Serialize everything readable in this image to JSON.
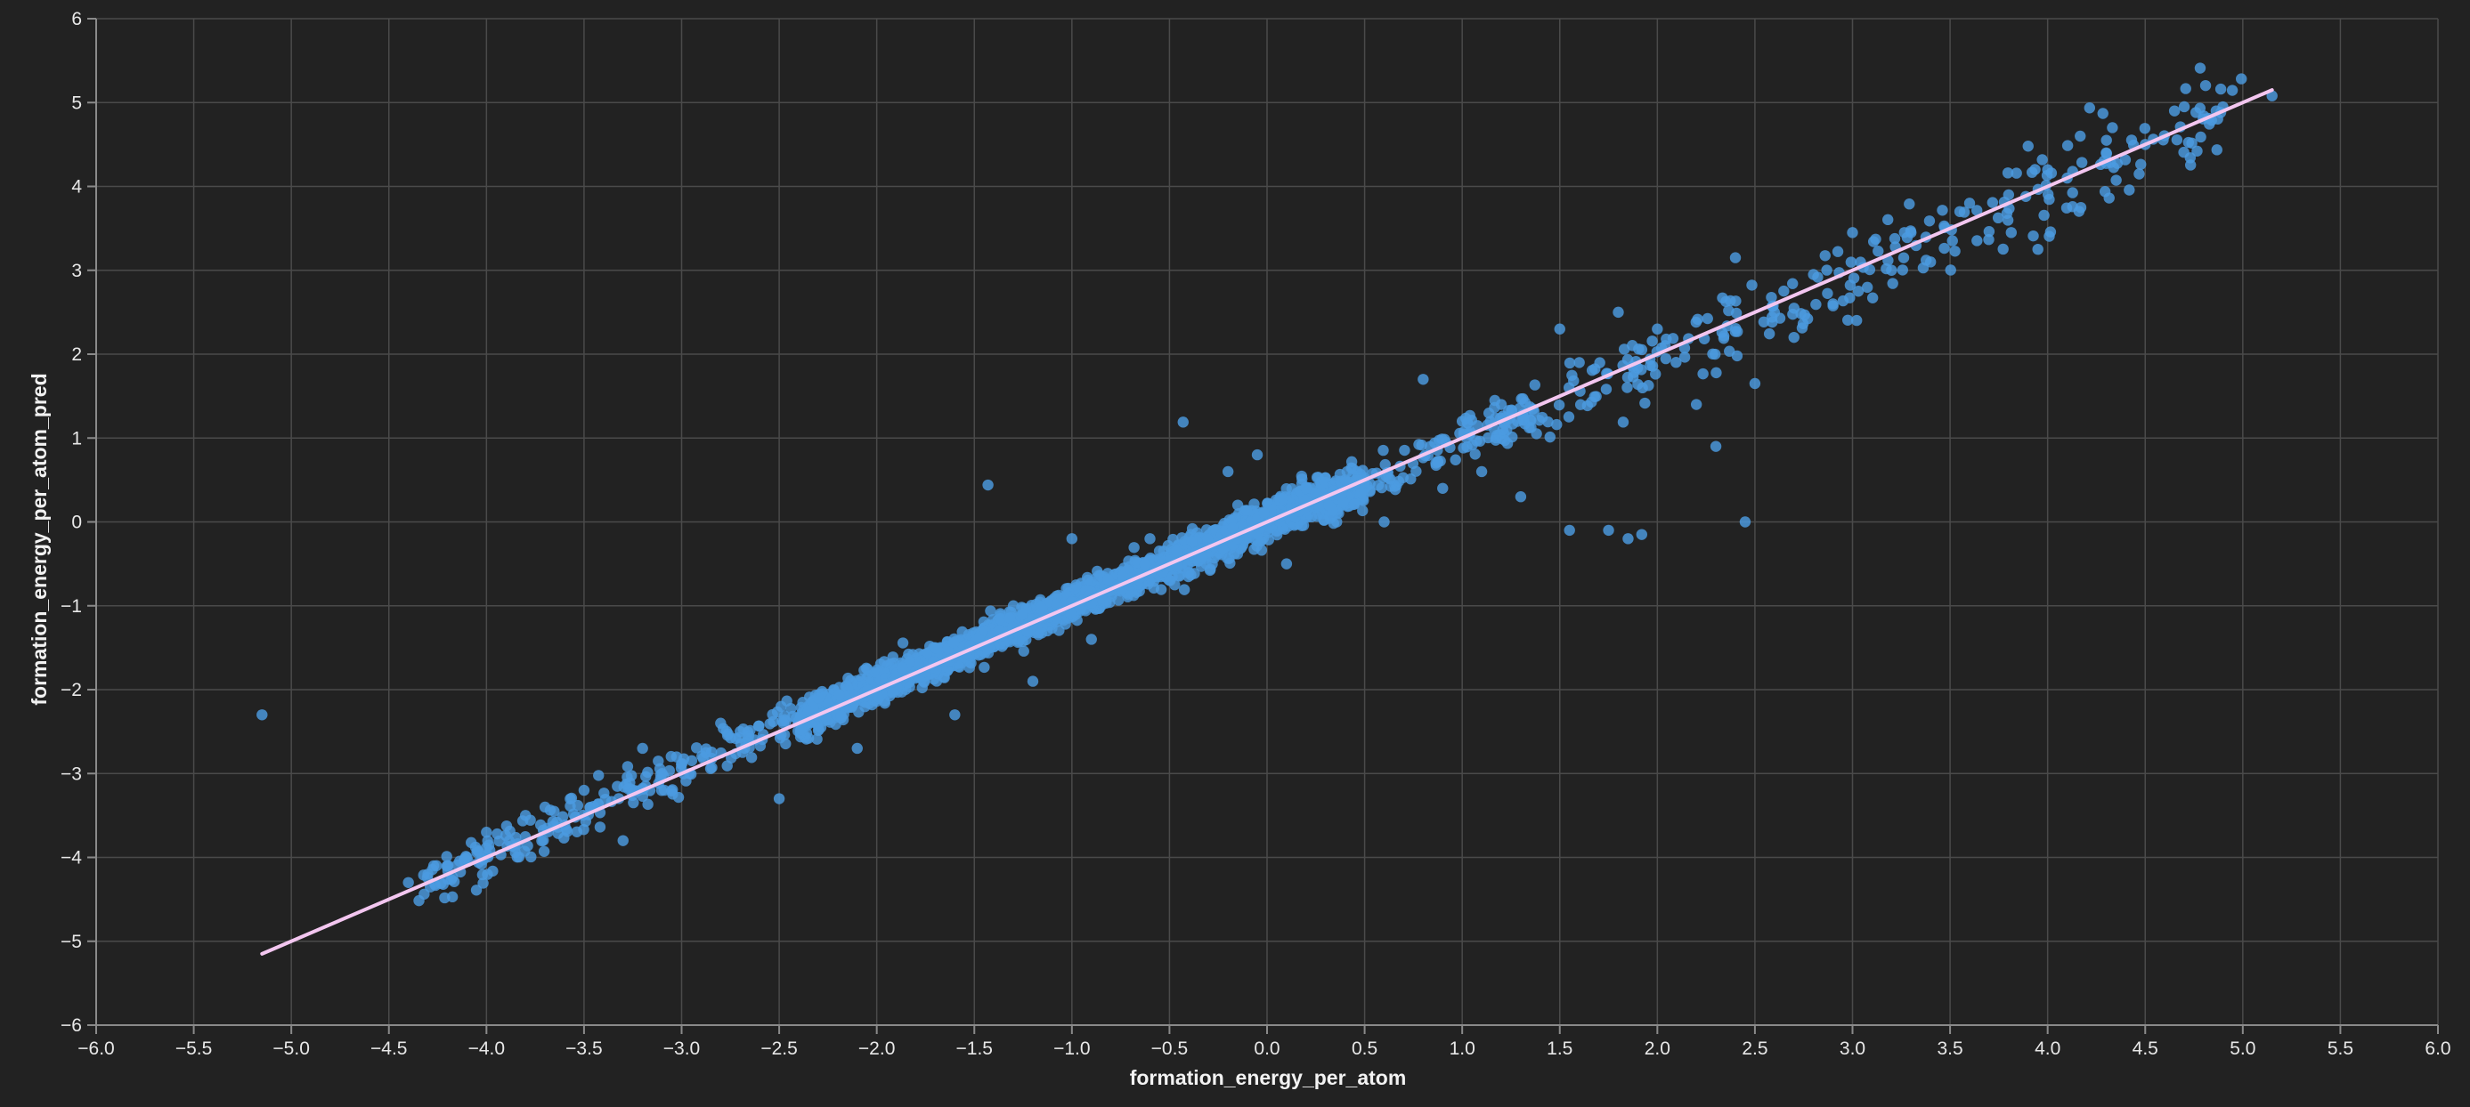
{
  "chart_data": {
    "type": "scatter",
    "xlabel": "formation_energy_per_atom",
    "ylabel": "formation_energy_per_atom_pred",
    "xlim": [
      -6.0,
      6.0
    ],
    "ylim": [
      -6,
      6
    ],
    "x_ticks": [
      "−6.0",
      "−5.5",
      "−5.0",
      "−4.5",
      "−4.0",
      "−3.5",
      "−3.0",
      "−2.5",
      "−2.0",
      "−1.5",
      "−1.0",
      "−0.5",
      "0.0",
      "0.5",
      "1.0",
      "1.5",
      "2.0",
      "2.5",
      "3.0",
      "3.5",
      "4.0",
      "4.5",
      "5.0",
      "5.5",
      "6.0"
    ],
    "y_ticks": [
      "−6",
      "−5",
      "−4",
      "−3",
      "−2",
      "−1",
      "0",
      "1",
      "2",
      "3",
      "4",
      "5",
      "6"
    ],
    "grid": true,
    "colors": {
      "points": "#4c9be0",
      "fit_line": "#f3c6f0",
      "background": "#222222",
      "grid": "#4a4a4a"
    },
    "fit_line": {
      "x": [
        -5.15,
        5.15
      ],
      "y": [
        -5.15,
        5.15
      ]
    },
    "series": [
      {
        "points": [
          [
            -5.15,
            -2.3
          ],
          [
            -1.43,
            0.44
          ],
          [
            -0.43,
            1.19
          ],
          [
            2.45,
            0.0
          ],
          [
            1.55,
            -0.1
          ],
          [
            1.85,
            -0.2
          ],
          [
            1.75,
            -0.1
          ],
          [
            1.92,
            -0.15
          ],
          [
            2.3,
            0.9
          ],
          [
            2.5,
            1.65
          ],
          [
            2.4,
            3.15
          ],
          [
            3.95,
            3.25
          ],
          [
            3.4,
            3.1
          ],
          [
            4.7,
            4.95
          ],
          [
            4.65,
            4.9
          ],
          [
            5.15,
            5.08
          ],
          [
            3.9,
            4.48
          ],
          [
            3.6,
            3.8
          ],
          [
            3.3,
            3.45
          ],
          [
            3.0,
            3.45
          ],
          [
            -2.5,
            -3.3
          ],
          [
            -2.1,
            -2.7
          ],
          [
            -1.6,
            -2.3
          ],
          [
            -1.2,
            -1.9
          ],
          [
            -0.9,
            -1.4
          ],
          [
            -0.4,
            -0.6
          ],
          [
            0.1,
            -0.5
          ],
          [
            0.6,
            0.0
          ],
          [
            -0.05,
            0.8
          ],
          [
            0.8,
            1.7
          ],
          [
            1.5,
            2.3
          ],
          [
            1.8,
            2.5
          ],
          [
            2.0,
            2.3
          ],
          [
            1.3,
            0.3
          ],
          [
            1.1,
            0.6
          ],
          [
            -3.2,
            -2.7
          ],
          [
            -3.7,
            -3.4
          ],
          [
            -3.3,
            -3.8
          ],
          [
            -4.0,
            -3.7
          ],
          [
            -2.8,
            -2.4
          ],
          [
            -0.15,
            0.2
          ],
          [
            -1.0,
            -0.2
          ],
          [
            1.6,
            1.9
          ],
          [
            2.2,
            1.4
          ],
          [
            2.7,
            2.2
          ],
          [
            2.9,
            2.6
          ],
          [
            3.2,
            3.0
          ],
          [
            4.1,
            4.1
          ],
          [
            4.3,
            4.4
          ],
          [
            4.5,
            4.5
          ],
          [
            3.55,
            3.7
          ],
          [
            3.8,
            3.9
          ],
          [
            4.0,
            4.2
          ],
          [
            2.6,
            2.5
          ],
          [
            2.8,
            2.95
          ],
          [
            0.9,
            0.4
          ],
          [
            1.0,
            1.2
          ],
          [
            1.2,
            1.4
          ],
          [
            0.4,
            0.5
          ],
          [
            0.2,
            0.4
          ],
          [
            -0.6,
            -0.2
          ],
          [
            -0.2,
            0.6
          ],
          [
            -1.3,
            -1.0
          ],
          [
            -1.7,
            -1.5
          ],
          [
            -2.3,
            -2.1
          ],
          [
            -2.7,
            -2.5
          ],
          [
            -3.1,
            -3.0
          ],
          [
            -3.5,
            -3.2
          ],
          [
            -3.8,
            -3.5
          ],
          [
            -4.2,
            -4.1
          ],
          [
            -4.4,
            -4.3
          ],
          [
            -4.3,
            -4.2
          ],
          [
            -4.1,
            -4.0
          ]
        ]
      }
    ],
    "dense_band": {
      "x_range": [
        -4.35,
        1.4
      ],
      "center_slope": 1.0,
      "count": 2600,
      "width_sd": 0.09
    }
  }
}
